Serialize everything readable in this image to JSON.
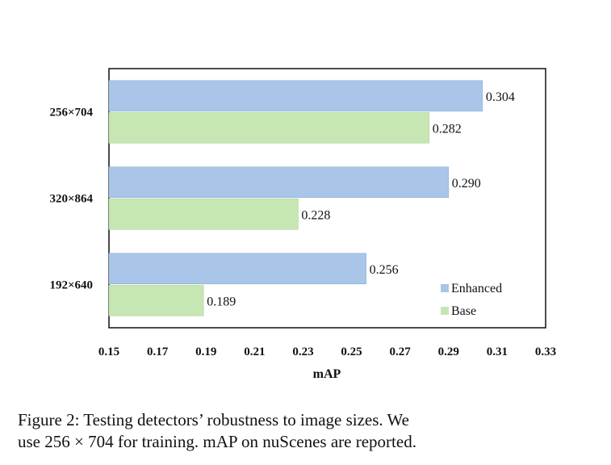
{
  "chart_data": {
    "type": "bar",
    "orientation": "horizontal",
    "categories": [
      "256×704",
      "320×864",
      "192×640"
    ],
    "series": [
      {
        "name": "Enhanced",
        "values": [
          0.304,
          0.29,
          0.256
        ],
        "color": "#a9c5e8"
      },
      {
        "name": "Base",
        "values": [
          0.282,
          0.228,
          0.189
        ],
        "color": "#c6e6b3"
      }
    ],
    "data_labels": {
      "Enhanced": [
        "0.304",
        "0.290",
        "0.256"
      ],
      "Base": [
        "0.282",
        "0.228",
        "0.189"
      ]
    },
    "xlabel": "mAP",
    "ylabel": "",
    "xlim": [
      0.15,
      0.33
    ],
    "xticks": [
      0.15,
      0.17,
      0.19,
      0.21,
      0.23,
      0.25,
      0.27,
      0.29,
      0.31,
      0.33
    ],
    "xtick_labels": [
      "0.15",
      "0.17",
      "0.19",
      "0.21",
      "0.23",
      "0.25",
      "0.27",
      "0.29",
      "0.31",
      "0.33"
    ],
    "grid": false,
    "legend_position": "bottom-right"
  },
  "caption": {
    "line1": "Figure 2: Testing detectors’ robustness to image sizes. We",
    "line2": "use 256 × 704 for training. mAP on nuScenes are reported."
  }
}
